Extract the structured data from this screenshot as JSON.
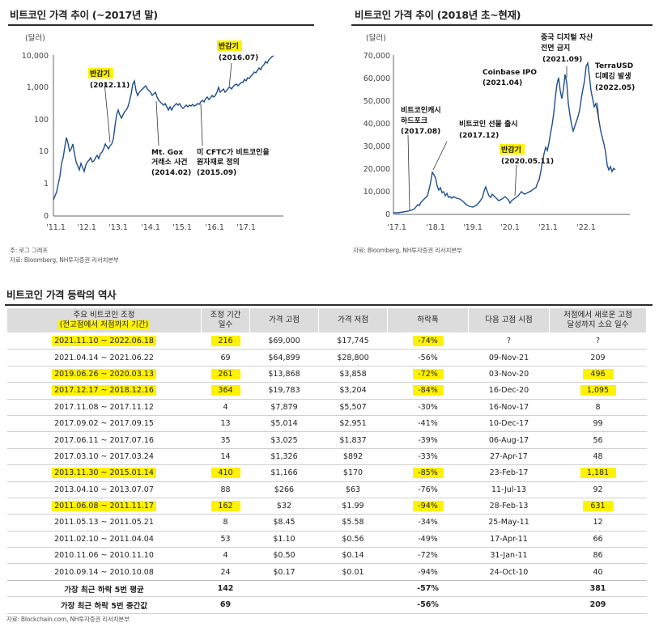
{
  "left_chart": {
    "title": "비트코인 가격 추이 (~2017년 말)",
    "unit": "(달러)",
    "y_ticks": [
      "10,000",
      "1,000",
      "100",
      "10",
      "1",
      "0"
    ],
    "x_ticks": [
      "'11.1",
      "'12.1",
      "'13.1",
      "'14.1",
      "'15.1",
      "'16.1",
      "'17.1"
    ],
    "annotations": {
      "halving1_label": "반감기",
      "halving1_date": "(2012.11)",
      "halving2_label": "반감기",
      "halving2_date": "(2016.07)",
      "mtgox_line1": "Mt. Gox",
      "mtgox_line2": "거래소 사건",
      "mtgox_date": "(2014.02)",
      "cftc_line1": "미 CFTC가 비트코인을",
      "cftc_line2": "원자재로 정의",
      "cftc_date": "(2015.09)"
    },
    "note": "주: 로그 그래프",
    "source": "자료: Bloomberg, NH투자증권 리서치본부",
    "chart_data": {
      "type": "line",
      "y_scale": "log",
      "ylabel": "(달러)",
      "x": [
        "2011.01",
        "2011.06",
        "2011.11",
        "2012.06",
        "2012.11",
        "2013.04",
        "2013.11",
        "2014.02",
        "2014.08",
        "2015.01",
        "2015.09",
        "2016.01",
        "2016.07",
        "2017.01",
        "2017.06",
        "2017.12"
      ],
      "values": [
        0.3,
        25,
        3,
        6,
        12,
        100,
        1100,
        600,
        500,
        200,
        230,
        430,
        650,
        950,
        2500,
        14000
      ]
    }
  },
  "right_chart": {
    "title": "비트코인 가격 추이 (2018년 초~현재)",
    "unit": "(달러)",
    "y_ticks": [
      "70,000",
      "60,000",
      "50,000",
      "40,000",
      "30,000",
      "20,000",
      "10,000",
      "0"
    ],
    "x_ticks": [
      "'17.1",
      "'18.1",
      "'19.1",
      "'20.1",
      "'21.1",
      "'22.1"
    ],
    "annotations": {
      "fork_line1": "비트코인캐시",
      "fork_line2": "하드포크",
      "fork_date": "(2017.08)",
      "futures_line1": "비트코인 선물 출시",
      "futures_date": "(2017.12)",
      "halving_label": "반감기",
      "halving_date": "(2020.05.11)",
      "coinbase_line1": "Coinbase IPO",
      "coinbase_date": "(2021.04)",
      "china_line1": "중국 디지털 자산",
      "china_line2": "전면 금지",
      "china_date": "(2021.09)",
      "terra_line1": "TerraUSD",
      "terra_line2": "디페깅 발생",
      "terra_date": "(2022.05)"
    },
    "source": "자료: Bloomberg, NH투자증권 리서치본부",
    "chart_data": {
      "type": "line",
      "ylabel": "(달러)",
      "ylim": [
        0,
        70000
      ],
      "x": [
        "2017.01",
        "2017.08",
        "2017.12",
        "2018.06",
        "2018.12",
        "2019.06",
        "2019.12",
        "2020.03",
        "2020.05",
        "2020.10",
        "2021.01",
        "2021.04",
        "2021.07",
        "2021.09",
        "2021.11",
        "2022.01",
        "2022.05",
        "2022.06"
      ],
      "values": [
        1000,
        4500,
        19000,
        7000,
        3500,
        11500,
        7200,
        5000,
        9000,
        13000,
        35000,
        63000,
        31000,
        47000,
        68000,
        37000,
        29000,
        20000
      ]
    }
  },
  "table": {
    "title": "비트코인 가격 등락의 역사",
    "headers": {
      "period_line1": "주요 비트코인 조정",
      "period_line2": "(전고점에서 저점까지 기간)",
      "days_line1": "조정 기간",
      "days_line2": "일수",
      "high": "가격 고점",
      "low": "가격 저점",
      "drop": "하락폭",
      "next_high": "다음 고점 시점",
      "recovery_line1": "저점에서 새로운 고점",
      "recovery_line2": "달성까지 소요 일수"
    },
    "rows": [
      {
        "period": "2021.11.10 ~ 2022.06.18",
        "days": "216",
        "high": "$69,000",
        "low": "$17,745",
        "drop": "-74%",
        "next": "?",
        "recovery": "?"
      },
      {
        "period": "2021.04.14 ~ 2021.06.22",
        "days": "69",
        "high": "$64,899",
        "low": "$28,800",
        "drop": "-56%",
        "next": "09-Nov-21",
        "recovery": "209"
      },
      {
        "period": "2019.06.26 ~ 2020.03.13",
        "days": "261",
        "high": "$13,868",
        "low": "$3,858",
        "drop": "-72%",
        "next": "03-Nov-20",
        "recovery": "496"
      },
      {
        "period": "2017.12.17 ~ 2018.12.16",
        "days": "364",
        "high": "$19,783",
        "low": "$3,204",
        "drop": "-84%",
        "next": "16-Dec-20",
        "recovery": "1,095"
      },
      {
        "period": "2017.11.08 ~ 2017.11.12",
        "days": "4",
        "high": "$7,879",
        "low": "$5,507",
        "drop": "-30%",
        "next": "16-Nov-17",
        "recovery": "8"
      },
      {
        "period": "2017.09.02 ~ 2017.09.15",
        "days": "13",
        "high": "$5,014",
        "low": "$2,951",
        "drop": "-41%",
        "next": "10-Dec-17",
        "recovery": "99"
      },
      {
        "period": "2017.06.11 ~ 2017.07.16",
        "days": "35",
        "high": "$3,025",
        "low": "$1,837",
        "drop": "-39%",
        "next": "06-Aug-17",
        "recovery": "56"
      },
      {
        "period": "2017.03.10 ~ 2017.03.24",
        "days": "14",
        "high": "$1,326",
        "low": "$892",
        "drop": "-33%",
        "next": "27-Apr-17",
        "recovery": "48"
      },
      {
        "period": "2013.11.30 ~ 2015.01.14",
        "days": "410",
        "high": "$1,166",
        "low": "$170",
        "drop": "-85%",
        "next": "23-Feb-17",
        "recovery": "1,181"
      },
      {
        "period": "2013.04.10 ~ 2013.07.07",
        "days": "88",
        "high": "$266",
        "low": "$63",
        "drop": "-76%",
        "next": "11-Jul-13",
        "recovery": "92"
      },
      {
        "period": "2011.06.08 ~ 2011.11.17",
        "days": "162",
        "high": "$32",
        "low": "$1.99",
        "drop": "-94%",
        "next": "28-Feb-13",
        "recovery": "631"
      },
      {
        "period": "2011.05.13 ~ 2011.05.21",
        "days": "8",
        "high": "$8.45",
        "low": "$5.58",
        "drop": "-34%",
        "next": "25-May-11",
        "recovery": "12"
      },
      {
        "period": "2011.02.10 ~ 2011.04.04",
        "days": "53",
        "high": "$1.10",
        "low": "$0.56",
        "drop": "-49%",
        "next": "17-Apr-11",
        "recovery": "66"
      },
      {
        "period": "2010.11.06 ~ 2010.11.10",
        "days": "4",
        "high": "$0.50",
        "low": "$0.14",
        "drop": "-72%",
        "next": "31-Jan-11",
        "recovery": "86"
      },
      {
        "period": "2010.09.14 ~ 2010.10.08",
        "days": "24",
        "high": "$0.17",
        "low": "$0.01",
        "drop": "-94%",
        "next": "24-Oct-10",
        "recovery": "40"
      }
    ],
    "summary": [
      {
        "label": "가장 최근 하락 5번 평균",
        "days": "142",
        "drop": "-57%",
        "recovery": "381"
      },
      {
        "label": "가장 최근 하락 5번 중간값",
        "days": "69",
        "drop": "-56%",
        "recovery": "209"
      }
    ],
    "source": "자료: Blockchain.com, NH투자증권 리서치본부"
  }
}
